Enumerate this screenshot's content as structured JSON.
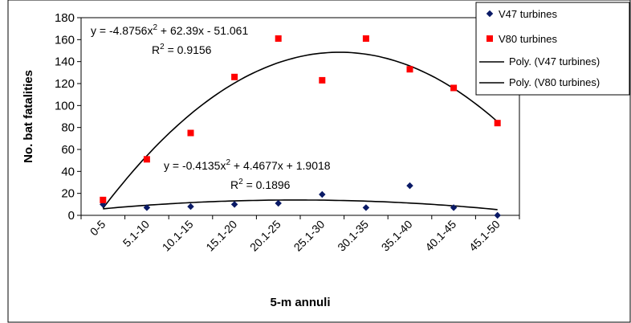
{
  "chart_data": {
    "type": "scatter",
    "title": "",
    "xlabel": "5-m annuli",
    "ylabel": "No. bat fatalities",
    "ylim": [
      0,
      180
    ],
    "yticks": [
      "0",
      "20",
      "40",
      "60",
      "80",
      "100",
      "120",
      "140",
      "160",
      "180"
    ],
    "categories": [
      "0-5",
      "5.1-10",
      "10.1-15",
      "15.1-20",
      "20.1-25",
      "25.1-30",
      "30.1-35",
      "35.1-40",
      "40.1-45",
      "45.1-50"
    ],
    "grid": false,
    "legend_position": "top-right",
    "series": [
      {
        "name": "V47 turbines",
        "marker": "diamond",
        "color": "#0a1a66",
        "values": [
          10,
          7,
          8,
          10,
          11,
          19,
          7,
          27,
          7,
          0
        ]
      },
      {
        "name": "V80 turbines",
        "marker": "square",
        "color": "#ff0000",
        "values": [
          14,
          51,
          75,
          126,
          161,
          123,
          161,
          133,
          116,
          84
        ]
      }
    ],
    "trendlines": [
      {
        "name": "Poly. (V47 turbines)",
        "color": "#000000",
        "coef": [
          -0.4135,
          4.4677,
          1.9018
        ],
        "equation": "y = -0.4135x",
        "equation_tail": " + 4.4677x + 1.9018",
        "r2_value": " = 0.1896"
      },
      {
        "name": "Poly. (V80 turbines)",
        "color": "#000000",
        "coef": [
          -4.8756,
          62.39,
          -51.061
        ],
        "equation": "y = -4.8756x",
        "equation_tail": " + 62.39x - 51.061",
        "r2_value": " = 0.9156"
      }
    ],
    "r2_label": "R",
    "superscript": "2"
  }
}
